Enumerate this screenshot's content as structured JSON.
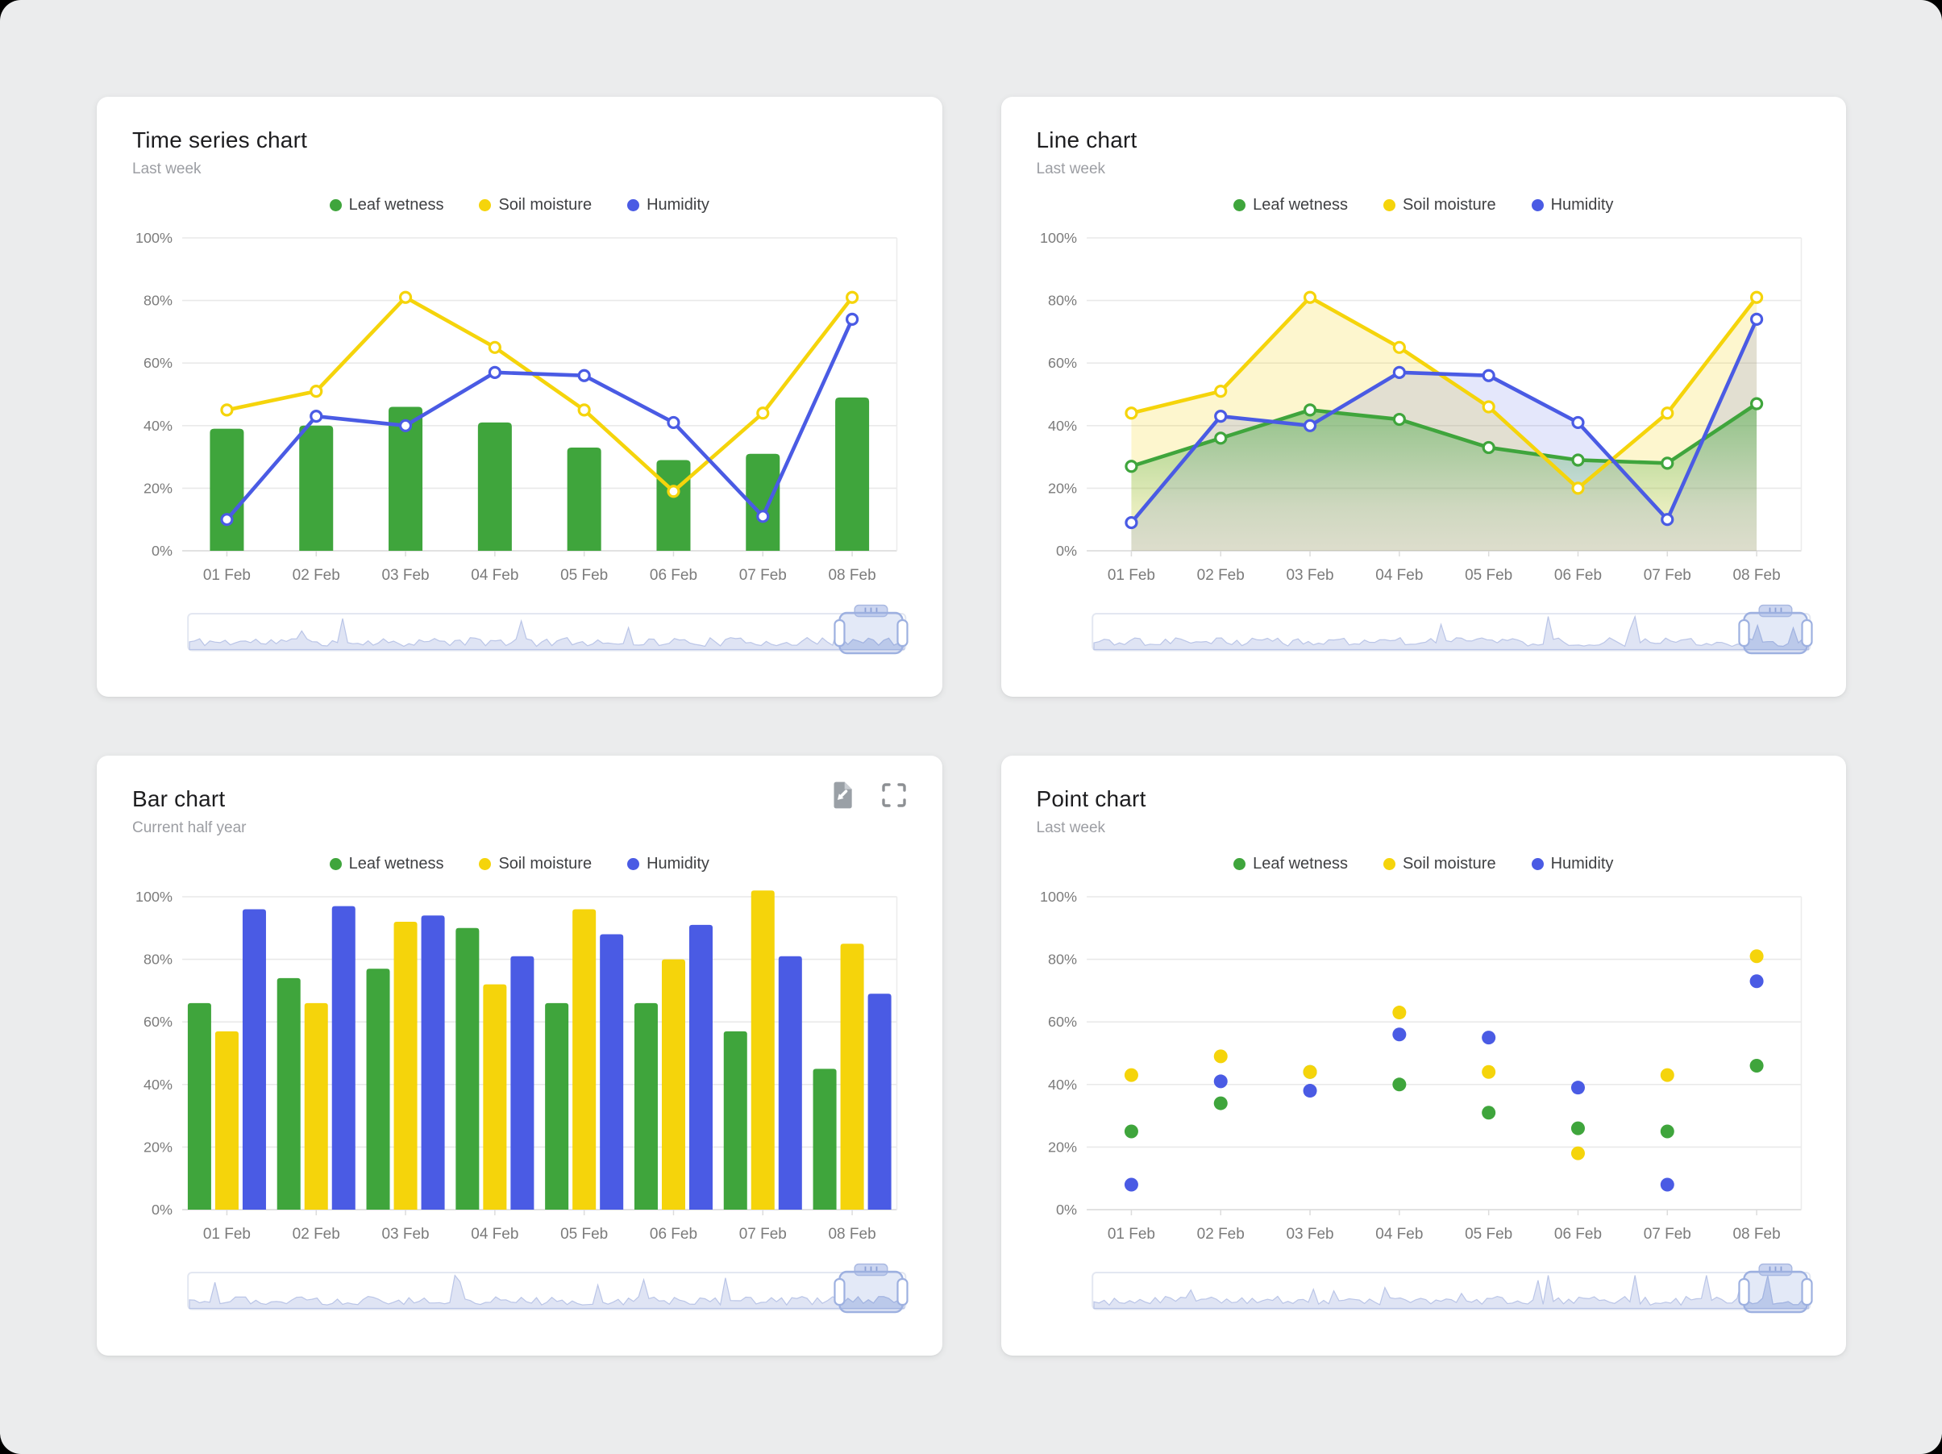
{
  "colors": {
    "leaf_wetness": "#3FA53C",
    "soil_moisture": "#F5D40B",
    "humidity": "#4A5BE4",
    "grid": "#E9E9E9",
    "axis_text": "#7B7B7B",
    "title_text": "#1D1D1F",
    "subtitle_text": "#9C9EA3",
    "panel_bg": "#FFFFFF",
    "page_bg": "#EBECED",
    "navigator_fill": "#DFE4F4",
    "navigator_line": "#BAC5E7",
    "scrubber_accent": "#9DB0E0"
  },
  "panels": [
    {
      "title": "Time series chart",
      "subtitle": "Last week",
      "icons": [],
      "has_navigator": true
    },
    {
      "title": "Line chart",
      "subtitle": "Last week",
      "icons": [],
      "has_navigator": true
    },
    {
      "title": "Bar chart",
      "subtitle": "Current half year",
      "icons": [
        "file-export-icon",
        "fullscreen-icon"
      ],
      "has_navigator": true
    },
    {
      "title": "Point chart",
      "subtitle": "Last week",
      "icons": [],
      "has_navigator": true
    }
  ],
  "chart_data": [
    {
      "type": "column-line-combo",
      "title": "Time series chart",
      "categories": [
        "01 Feb",
        "02 Feb",
        "03 Feb",
        "04 Feb",
        "05 Feb",
        "06 Feb",
        "07 Feb",
        "08 Feb"
      ],
      "yticks": [
        "0%",
        "20%",
        "40%",
        "60%",
        "80%",
        "100%"
      ],
      "ylim": [
        0,
        100
      ],
      "grid": true,
      "legend_position": "top-center",
      "series": [
        {
          "name": "Leaf wetness",
          "render": "column",
          "color": "#3FA53C",
          "values": [
            39,
            40,
            46,
            41,
            33,
            29,
            31,
            49
          ]
        },
        {
          "name": "Soil moisture",
          "render": "line",
          "marker": "open",
          "color": "#F5D40B",
          "values": [
            45,
            51,
            81,
            65,
            45,
            19,
            44,
            81
          ]
        },
        {
          "name": "Humidity",
          "render": "line",
          "marker": "open",
          "color": "#4A5BE4",
          "values": [
            10,
            43,
            40,
            57,
            56,
            41,
            11,
            74
          ]
        }
      ]
    },
    {
      "type": "line-area",
      "title": "Line chart",
      "categories": [
        "01 Feb",
        "02 Feb",
        "03 Feb",
        "04 Feb",
        "05 Feb",
        "06 Feb",
        "07 Feb",
        "08 Feb"
      ],
      "yticks": [
        "0%",
        "20%",
        "40%",
        "60%",
        "80%",
        "100%"
      ],
      "ylim": [
        0,
        100
      ],
      "grid": true,
      "legend_position": "top-center",
      "series": [
        {
          "name": "Leaf wetness",
          "render": "line",
          "marker": "open",
          "fill": "gradient",
          "color": "#3FA53C",
          "values": [
            27,
            36,
            45,
            42,
            33,
            29,
            28,
            47
          ]
        },
        {
          "name": "Soil moisture",
          "render": "line",
          "marker": "open",
          "fill": "solid",
          "color": "#F5D40B",
          "values": [
            44,
            51,
            81,
            65,
            46,
            20,
            44,
            81
          ]
        },
        {
          "name": "Humidity",
          "render": "line",
          "marker": "open",
          "fill": "solid",
          "color": "#4A5BE4",
          "values": [
            9,
            43,
            40,
            57,
            56,
            41,
            10,
            74
          ]
        }
      ]
    },
    {
      "type": "grouped-column",
      "title": "Bar chart",
      "categories": [
        "01 Feb",
        "02 Feb",
        "03 Feb",
        "04 Feb",
        "05 Feb",
        "06 Feb",
        "07 Feb",
        "08 Feb"
      ],
      "yticks": [
        "0%",
        "20%",
        "40%",
        "60%",
        "80%",
        "100%"
      ],
      "ylim": [
        0,
        100
      ],
      "grid": true,
      "legend_position": "top-center",
      "series": [
        {
          "name": "Leaf wetness",
          "render": "column",
          "color": "#3FA53C",
          "values": [
            66,
            74,
            77,
            90,
            66,
            66,
            57,
            45
          ]
        },
        {
          "name": "Soil moisture",
          "render": "column",
          "color": "#F5D40B",
          "values": [
            57,
            66,
            92,
            72,
            96,
            80,
            102,
            85
          ]
        },
        {
          "name": "Humidity",
          "render": "column",
          "color": "#4A5BE4",
          "values": [
            96,
            97,
            94,
            81,
            88,
            91,
            81,
            69
          ]
        }
      ]
    },
    {
      "type": "point",
      "title": "Point chart",
      "categories": [
        "01 Feb",
        "02 Feb",
        "03 Feb",
        "04 Feb",
        "05 Feb",
        "06 Feb",
        "07 Feb",
        "08 Feb"
      ],
      "yticks": [
        "0%",
        "20%",
        "40%",
        "60%",
        "80%",
        "100%"
      ],
      "ylim": [
        0,
        100
      ],
      "grid": true,
      "legend_position": "top-center",
      "series": [
        {
          "name": "Leaf wetness",
          "render": "point",
          "color": "#3FA53C",
          "values": [
            25,
            34,
            44,
            40,
            31,
            26,
            25,
            46
          ]
        },
        {
          "name": "Soil moisture",
          "render": "point",
          "color": "#F5D40B",
          "values": [
            43,
            49,
            44,
            63,
            44,
            18,
            43,
            81
          ]
        },
        {
          "name": "Humidity",
          "render": "point",
          "color": "#4A5BE4",
          "values": [
            8,
            41,
            38,
            56,
            55,
            39,
            8,
            73
          ]
        }
      ]
    }
  ]
}
